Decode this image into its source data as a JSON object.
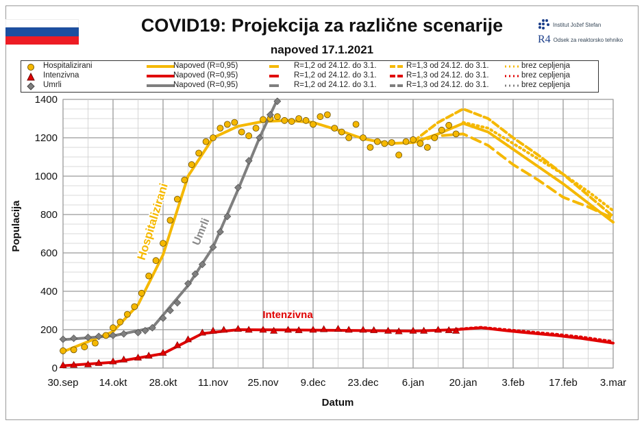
{
  "header": {
    "title": "COVID19: Projekcija za različne scenarije",
    "subtitle": "napoved 17.1.2021",
    "flag_colors": [
      "#ffffff",
      "#1c4fa0",
      "#ed1c24"
    ],
    "logo": {
      "institute": "Institut Jožef Stefan",
      "department": "Odsek za reaktorsko tehniko",
      "mark": "R4"
    }
  },
  "legend": {
    "rows": [
      {
        "marker": "circle",
        "color": "#f5b800",
        "label": "Hospitalizirani",
        "fit": "Napoved (R=0,95)",
        "s12": "R=1,2 od 24.12. do 3.1.",
        "s13": "R=1,3 od 24.12. do 3.1.",
        "nov": "brez cepljenja"
      },
      {
        "marker": "triangle",
        "color": "#e00000",
        "label": "Intenzivna",
        "fit": "Napoved (R=0,95)",
        "s12": "R=1,2 od 24.12. do 3.1.",
        "s13": "R=1,3 od 24.12. do 3.1.",
        "nov": "brez cepljenja"
      },
      {
        "marker": "diamond",
        "color": "#7f7f7f",
        "label": "Umrli",
        "fit": "Napoved (R=0,95)",
        "s12": "R=1,2 od 24.12. do 3.1.",
        "s13": "R=1,3 od 24.12. do 3.1.",
        "nov": "brez cepljenja"
      }
    ]
  },
  "chart_data": {
    "type": "line",
    "xlabel": "Datum",
    "ylabel": "Populacija",
    "ylim": [
      0,
      1400
    ],
    "yticks": [
      0,
      200,
      400,
      600,
      800,
      1000,
      1200,
      1400
    ],
    "xlim": [
      "2020-09-30",
      "2021-03-03"
    ],
    "xticks": [
      [
        "2020-09-30",
        "30.sep"
      ],
      [
        "2020-10-14",
        "14.okt"
      ],
      [
        "2020-10-28",
        "28.okt"
      ],
      [
        "2020-11-11",
        "11.nov"
      ],
      [
        "2020-11-25",
        "25.nov"
      ],
      [
        "2020-12-09",
        "9.dec"
      ],
      [
        "2020-12-23",
        "23.dec"
      ],
      [
        "2021-01-06",
        "6.jan"
      ],
      [
        "2021-01-20",
        "20.jan"
      ],
      [
        "2021-02-03",
        "3.feb"
      ],
      [
        "2021-02-17",
        "17.feb"
      ],
      [
        "2021-03-03",
        "3.mar"
      ]
    ],
    "grid": true,
    "annotations": [
      {
        "text": "Hospitalizirani",
        "color": "#f5b800"
      },
      {
        "text": "Umrli",
        "color": "#8a8a8a"
      },
      {
        "text": "Intenzivna",
        "color": "#e00000"
      }
    ],
    "series": [
      {
        "name": "Hospitalizirani",
        "kind": "points",
        "marker": "circle",
        "color": "#f5b800",
        "points": [
          [
            "2020-09-30",
            90
          ],
          [
            "2020-10-03",
            95
          ],
          [
            "2020-10-06",
            110
          ],
          [
            "2020-10-09",
            130
          ],
          [
            "2020-10-12",
            170
          ],
          [
            "2020-10-14",
            210
          ],
          [
            "2020-10-16",
            240
          ],
          [
            "2020-10-18",
            280
          ],
          [
            "2020-10-20",
            320
          ],
          [
            "2020-10-22",
            390
          ],
          [
            "2020-10-24",
            480
          ],
          [
            "2020-10-26",
            560
          ],
          [
            "2020-10-28",
            650
          ],
          [
            "2020-10-30",
            770
          ],
          [
            "2020-11-01",
            880
          ],
          [
            "2020-11-03",
            980
          ],
          [
            "2020-11-05",
            1060
          ],
          [
            "2020-11-07",
            1120
          ],
          [
            "2020-11-09",
            1180
          ],
          [
            "2020-11-11",
            1200
          ],
          [
            "2020-11-13",
            1250
          ],
          [
            "2020-11-15",
            1270
          ],
          [
            "2020-11-17",
            1280
          ],
          [
            "2020-11-19",
            1230
          ],
          [
            "2020-11-21",
            1210
          ],
          [
            "2020-11-23",
            1250
          ],
          [
            "2020-11-25",
            1295
          ],
          [
            "2020-11-27",
            1300
          ],
          [
            "2020-11-29",
            1310
          ],
          [
            "2020-12-01",
            1290
          ],
          [
            "2020-12-03",
            1285
          ],
          [
            "2020-12-05",
            1300
          ],
          [
            "2020-12-07",
            1290
          ],
          [
            "2020-12-09",
            1270
          ],
          [
            "2020-12-11",
            1310
          ],
          [
            "2020-12-13",
            1320
          ],
          [
            "2020-12-15",
            1250
          ],
          [
            "2020-12-17",
            1230
          ],
          [
            "2020-12-19",
            1200
          ],
          [
            "2020-12-21",
            1270
          ],
          [
            "2020-12-23",
            1200
          ],
          [
            "2020-12-25",
            1150
          ],
          [
            "2020-12-27",
            1180
          ],
          [
            "2020-12-29",
            1170
          ],
          [
            "2020-12-31",
            1175
          ],
          [
            "2021-01-02",
            1110
          ],
          [
            "2021-01-04",
            1180
          ],
          [
            "2021-01-06",
            1190
          ],
          [
            "2021-01-08",
            1170
          ],
          [
            "2021-01-10",
            1150
          ],
          [
            "2021-01-12",
            1200
          ],
          [
            "2021-01-14",
            1240
          ],
          [
            "2021-01-16",
            1265
          ],
          [
            "2021-01-18",
            1220
          ]
        ]
      },
      {
        "name": "Hospitalizirani Napoved (R=0,95)",
        "kind": "line",
        "dash": "solid",
        "color": "#f5b800",
        "points": [
          [
            "2020-09-30",
            85
          ],
          [
            "2020-10-14",
            190
          ],
          [
            "2020-10-21",
            330
          ],
          [
            "2020-10-28",
            590
          ],
          [
            "2020-11-04",
            1000
          ],
          [
            "2020-11-11",
            1200
          ],
          [
            "2020-11-18",
            1260
          ],
          [
            "2020-11-25",
            1285
          ],
          [
            "2020-12-02",
            1290
          ],
          [
            "2020-12-09",
            1280
          ],
          [
            "2020-12-16",
            1240
          ],
          [
            "2020-12-23",
            1195
          ],
          [
            "2020-12-30",
            1170
          ],
          [
            "2021-01-06",
            1175
          ],
          [
            "2021-01-13",
            1220
          ],
          [
            "2021-01-20",
            1275
          ],
          [
            "2021-01-27",
            1230
          ],
          [
            "2021-02-03",
            1140
          ],
          [
            "2021-02-10",
            1050
          ],
          [
            "2021-02-17",
            960
          ],
          [
            "2021-02-24",
            860
          ],
          [
            "2021-03-03",
            760
          ]
        ]
      },
      {
        "name": "Hospitalizirani R=1,2 od 24.12. do 3.1.",
        "kind": "line",
        "dash": "long",
        "color": "#f5b800",
        "points": [
          [
            "2021-01-06",
            1175
          ],
          [
            "2021-01-13",
            1210
          ],
          [
            "2021-01-20",
            1220
          ],
          [
            "2021-01-27",
            1160
          ],
          [
            "2021-02-03",
            1060
          ],
          [
            "2021-02-10",
            980
          ],
          [
            "2021-02-17",
            890
          ],
          [
            "2021-02-24",
            840
          ],
          [
            "2021-03-03",
            780
          ]
        ]
      },
      {
        "name": "Hospitalizirani R=1,3 od 24.12. do 3.1.",
        "kind": "line",
        "dash": "dash",
        "color": "#f5b800",
        "points": [
          [
            "2021-01-06",
            1180
          ],
          [
            "2021-01-13",
            1280
          ],
          [
            "2021-01-20",
            1350
          ],
          [
            "2021-01-27",
            1300
          ],
          [
            "2021-02-03",
            1200
          ],
          [
            "2021-02-10",
            1110
          ],
          [
            "2021-02-17",
            1010
          ],
          [
            "2021-02-24",
            900
          ],
          [
            "2021-03-03",
            790
          ]
        ]
      },
      {
        "name": "Hospitalizirani brez cepljenja",
        "kind": "line",
        "dash": "dot",
        "color": "#f5b800",
        "points": [
          [
            "2021-01-20",
            1280
          ],
          [
            "2021-01-27",
            1250
          ],
          [
            "2021-02-03",
            1170
          ],
          [
            "2021-02-10",
            1090
          ],
          [
            "2021-02-17",
            1010
          ],
          [
            "2021-02-24",
            920
          ],
          [
            "2021-03-03",
            820
          ]
        ]
      },
      {
        "name": "Intenzivna",
        "kind": "points",
        "marker": "triangle",
        "color": "#e00000",
        "points": [
          [
            "2020-09-30",
            15
          ],
          [
            "2020-10-03",
            17
          ],
          [
            "2020-10-07",
            20
          ],
          [
            "2020-10-10",
            27
          ],
          [
            "2020-10-14",
            35
          ],
          [
            "2020-10-17",
            45
          ],
          [
            "2020-10-21",
            55
          ],
          [
            "2020-10-24",
            65
          ],
          [
            "2020-10-28",
            80
          ],
          [
            "2020-11-01",
            120
          ],
          [
            "2020-11-04",
            150
          ],
          [
            "2020-11-08",
            185
          ],
          [
            "2020-11-11",
            195
          ],
          [
            "2020-11-14",
            200
          ],
          [
            "2020-11-18",
            205
          ],
          [
            "2020-11-21",
            200
          ],
          [
            "2020-11-25",
            200
          ],
          [
            "2020-11-28",
            195
          ],
          [
            "2020-12-02",
            200
          ],
          [
            "2020-12-05",
            198
          ],
          [
            "2020-12-09",
            200
          ],
          [
            "2020-12-12",
            203
          ],
          [
            "2020-12-16",
            205
          ],
          [
            "2020-12-19",
            200
          ],
          [
            "2020-12-23",
            200
          ],
          [
            "2020-12-26",
            198
          ],
          [
            "2020-12-30",
            195
          ],
          [
            "2021-01-02",
            192
          ],
          [
            "2021-01-06",
            195
          ],
          [
            "2021-01-09",
            195
          ],
          [
            "2021-01-13",
            200
          ],
          [
            "2021-01-16",
            198
          ],
          [
            "2021-01-18",
            195
          ]
        ]
      },
      {
        "name": "Intenzivna Napoved (R=0,95)",
        "kind": "line",
        "dash": "solid",
        "color": "#e00000",
        "points": [
          [
            "2020-09-30",
            12
          ],
          [
            "2020-10-14",
            30
          ],
          [
            "2020-10-28",
            75
          ],
          [
            "2020-11-08",
            180
          ],
          [
            "2020-11-18",
            200
          ],
          [
            "2020-12-09",
            198
          ],
          [
            "2021-01-06",
            193
          ],
          [
            "2021-01-18",
            200
          ],
          [
            "2021-01-25",
            210
          ],
          [
            "2021-02-01",
            195
          ],
          [
            "2021-02-08",
            182
          ],
          [
            "2021-02-15",
            170
          ],
          [
            "2021-02-22",
            155
          ],
          [
            "2021-03-03",
            130
          ]
        ]
      },
      {
        "name": "Intenzivna brez cepljenja",
        "kind": "line",
        "dash": "dot",
        "color": "#e00000",
        "points": [
          [
            "2021-01-18",
            202
          ],
          [
            "2021-01-25",
            212
          ],
          [
            "2021-02-01",
            200
          ],
          [
            "2021-02-08",
            188
          ],
          [
            "2021-02-15",
            176
          ],
          [
            "2021-02-22",
            162
          ],
          [
            "2021-03-03",
            138
          ]
        ]
      },
      {
        "name": "Umrli",
        "kind": "points",
        "marker": "diamond",
        "color": "#7f7f7f",
        "points": [
          [
            "2020-09-30",
            150
          ],
          [
            "2020-10-03",
            155
          ],
          [
            "2020-10-07",
            160
          ],
          [
            "2020-10-10",
            165
          ],
          [
            "2020-10-14",
            170
          ],
          [
            "2020-10-17",
            178
          ],
          [
            "2020-10-21",
            185
          ],
          [
            "2020-10-23",
            195
          ],
          [
            "2020-10-25",
            210
          ],
          [
            "2020-10-28",
            260
          ],
          [
            "2020-10-30",
            300
          ],
          [
            "2020-11-01",
            340
          ],
          [
            "2020-11-04",
            440
          ],
          [
            "2020-11-06",
            490
          ],
          [
            "2020-11-08",
            540
          ],
          [
            "2020-11-11",
            630
          ],
          [
            "2020-11-13",
            710
          ],
          [
            "2020-11-15",
            790
          ],
          [
            "2020-11-18",
            940
          ],
          [
            "2020-11-21",
            1080
          ],
          [
            "2020-11-24",
            1200
          ],
          [
            "2020-11-27",
            1320
          ],
          [
            "2020-11-29",
            1390
          ]
        ]
      },
      {
        "name": "Umrli Napoved (R=0,95)",
        "kind": "line",
        "dash": "solid",
        "color": "#7f7f7f",
        "points": [
          [
            "2020-09-30",
            148
          ],
          [
            "2020-10-14",
            168
          ],
          [
            "2020-10-25",
            210
          ],
          [
            "2020-11-04",
            430
          ],
          [
            "2020-11-11",
            630
          ],
          [
            "2020-11-18",
            930
          ],
          [
            "2020-11-24",
            1200
          ],
          [
            "2020-11-29",
            1400
          ]
        ]
      }
    ]
  }
}
